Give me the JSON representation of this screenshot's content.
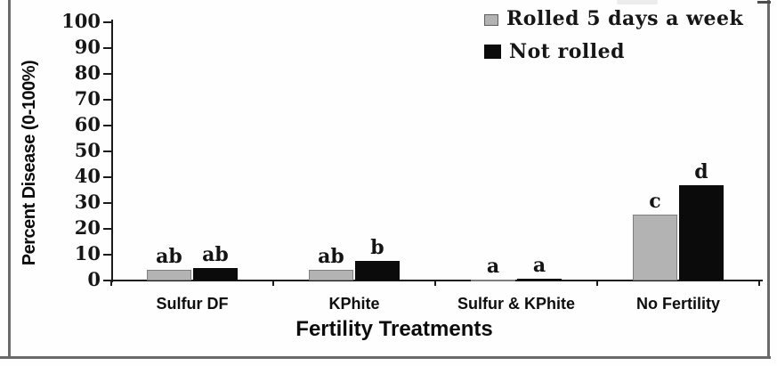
{
  "chart_data": {
    "type": "bar",
    "title": "",
    "xlabel": "Fertility Treatments",
    "ylabel": "Percent Disease (0-100%)",
    "ylim": [
      0,
      100
    ],
    "ytick_step": 10,
    "ytick_labels": [
      "0",
      "10",
      "20",
      "30",
      "40",
      "50",
      "60",
      "70",
      "80",
      "90",
      "100"
    ],
    "categories": [
      "Sulfur DF",
      "KPhite",
      "Sulfur & KPhite",
      "No Fertility"
    ],
    "series": [
      {
        "name": "Rolled 5 days a week",
        "color": "#b3b3b3",
        "border_color": "#7e7e7e",
        "values": [
          4,
          4,
          0.3,
          25.5
        ],
        "sig_labels": [
          "ab",
          "ab",
          "a",
          "c"
        ]
      },
      {
        "name": "Not rolled",
        "color": "#0b0b0b",
        "border_color": "#0b0b0b",
        "values": [
          5,
          7.5,
          0.8,
          37
        ],
        "sig_labels": [
          "ab",
          "b",
          "a",
          "d"
        ]
      }
    ],
    "legend_position": "top-right",
    "grid": false,
    "axis_color": "#1b1b1b"
  }
}
